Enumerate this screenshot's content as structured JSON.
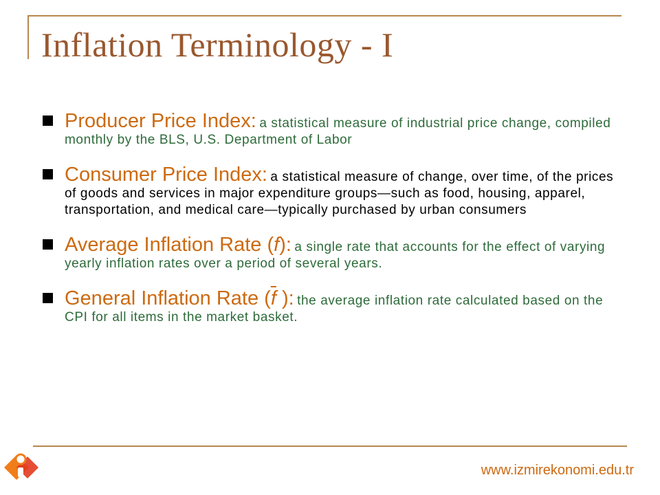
{
  "slide": {
    "title": "Inflation Terminology - I",
    "items": [
      {
        "term": "Producer Price Index:",
        "definition": "a statistical measure of industrial price change, compiled monthly by the BLS, U.S. Department of Labor"
      },
      {
        "term": "Consumer Price Index:",
        "definition": "a statistical measure of change, over time, of the prices of goods and services in major expenditure groups—such as food, housing, apparel, transportation, and medical care—typically purchased by urban consumers"
      },
      {
        "term_prefix": "Average Inflation Rate (",
        "term_symbol": "f",
        "term_suffix": "):",
        "definition": "a single rate that accounts for the effect of varying yearly inflation rates over a period of several years."
      },
      {
        "term_prefix": "General Inflation Rate (",
        "term_symbol": "f",
        "term_suffix": " ):",
        "definition": "the average inflation rate calculated based on the CPI for all items in the market basket."
      }
    ],
    "footer_url": "www.izmirekonomi.edu.tr"
  },
  "colors": {
    "title": "#99582f",
    "term": "#cc6a12",
    "definition_green": "#2e6b3a",
    "frame_line": "#b8864f"
  },
  "icons": {
    "logo": "izmir-ekonomi-logo-icon",
    "bullet": "square-bullet-icon"
  }
}
